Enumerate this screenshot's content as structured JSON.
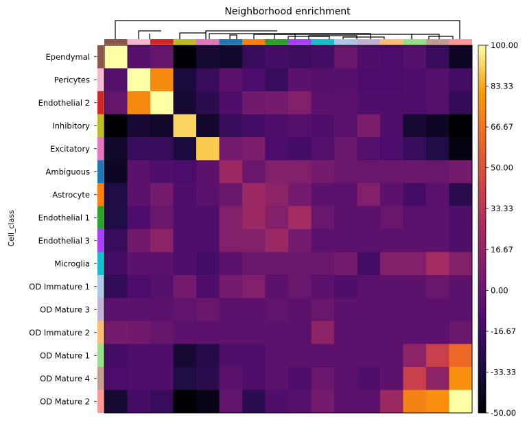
{
  "chart_data": {
    "type": "heatmap",
    "title": "Neighborhood enrichment",
    "ylabel": "Cell_class",
    "xlabel": "",
    "row_labels": [
      "Ependymal",
      "Pericytes",
      "Endothelial 2",
      "Inhibitory",
      "Excitatory",
      "Ambiguous",
      "Astrocyte",
      "Endothelial 1",
      "Endothelial 3",
      "Microglia",
      "OD Immature 1",
      "OD Mature 3",
      "OD Immature 2",
      "OD Mature 1",
      "OD Mature 4",
      "OD Mature 2"
    ],
    "category_colors": [
      "#8c564b",
      "#f7b6d2",
      "#d62728",
      "#bcbd22",
      "#e377c2",
      "#1f77b4",
      "#ff7f0e",
      "#2ca02c",
      "#aa40fc",
      "#17becf",
      "#aec7e8",
      "#c5b0d5",
      "#ffbb78",
      "#98df8a",
      "#c49c94",
      "#ff9896"
    ],
    "values": [
      [
        100,
        -8,
        -2,
        -50,
        -35,
        -38,
        -20,
        -15,
        -18,
        -15,
        0,
        -10,
        -12,
        -8,
        -20,
        -40
      ],
      [
        -8,
        100,
        75,
        -32,
        -20,
        -5,
        -12,
        -20,
        -5,
        -8,
        -7,
        -12,
        -12,
        -10,
        -8,
        -15
      ],
      [
        -2,
        75,
        100,
        -35,
        -25,
        -10,
        3,
        5,
        10,
        -5,
        -5,
        -10,
        -10,
        -10,
        -8,
        -22
      ],
      [
        -50,
        -35,
        -38,
        92,
        -38,
        -20,
        -15,
        -10,
        -8,
        -10,
        -5,
        8,
        -10,
        -35,
        -40,
        -50
      ],
      [
        -38,
        -20,
        -20,
        -32,
        90,
        5,
        8,
        -12,
        -15,
        -8,
        0,
        -8,
        -12,
        -20,
        -30,
        -47
      ],
      [
        -40,
        -5,
        -10,
        -12,
        -5,
        20,
        0,
        10,
        10,
        5,
        0,
        0,
        0,
        0,
        0,
        5
      ],
      [
        -30,
        -5,
        5,
        -10,
        -5,
        0,
        20,
        15,
        5,
        -5,
        -5,
        10,
        -5,
        -15,
        -5,
        -25
      ],
      [
        -30,
        -12,
        0,
        -10,
        -10,
        10,
        20,
        10,
        25,
        0,
        -5,
        -5,
        0,
        -5,
        -5,
        -10
      ],
      [
        -20,
        3,
        15,
        -10,
        -10,
        10,
        10,
        20,
        5,
        -5,
        -5,
        -5,
        -5,
        -5,
        -5,
        -10
      ],
      [
        -15,
        -5,
        -5,
        -10,
        -15,
        -5,
        0,
        0,
        0,
        0,
        5,
        -15,
        10,
        10,
        25,
        10
      ],
      [
        -22,
        -12,
        -8,
        5,
        -10,
        5,
        10,
        -5,
        0,
        -5,
        -10,
        -5,
        -5,
        -5,
        0,
        -5
      ],
      [
        -5,
        -5,
        -5,
        -3,
        0,
        -5,
        -5,
        -3,
        -5,
        0,
        -5,
        -5,
        -5,
        -5,
        -5,
        -5
      ],
      [
        5,
        3,
        -2,
        -5,
        -5,
        -5,
        -5,
        -5,
        -5,
        15,
        -5,
        -5,
        -5,
        -5,
        -5,
        0
      ],
      [
        -15,
        -10,
        -10,
        -35,
        -28,
        -10,
        -10,
        -5,
        -5,
        -5,
        -5,
        -5,
        -5,
        15,
        40,
        62
      ],
      [
        -12,
        -10,
        -10,
        -30,
        -25,
        -5,
        -10,
        -5,
        -10,
        0,
        -5,
        -10,
        -5,
        40,
        15,
        77
      ],
      [
        -35,
        -15,
        -20,
        -50,
        -45,
        -3,
        -25,
        -10,
        -8,
        5,
        -5,
        -5,
        20,
        72,
        77,
        100
      ]
    ],
    "vmin": -50,
    "vmax": 100,
    "colormap": "inferno",
    "colorbar_ticks": [
      "100.00",
      "83.33",
      "66.67",
      "50.00",
      "33.33",
      "16.67",
      "0.00",
      "-16.67",
      "-33.33",
      "-50.00"
    ]
  }
}
